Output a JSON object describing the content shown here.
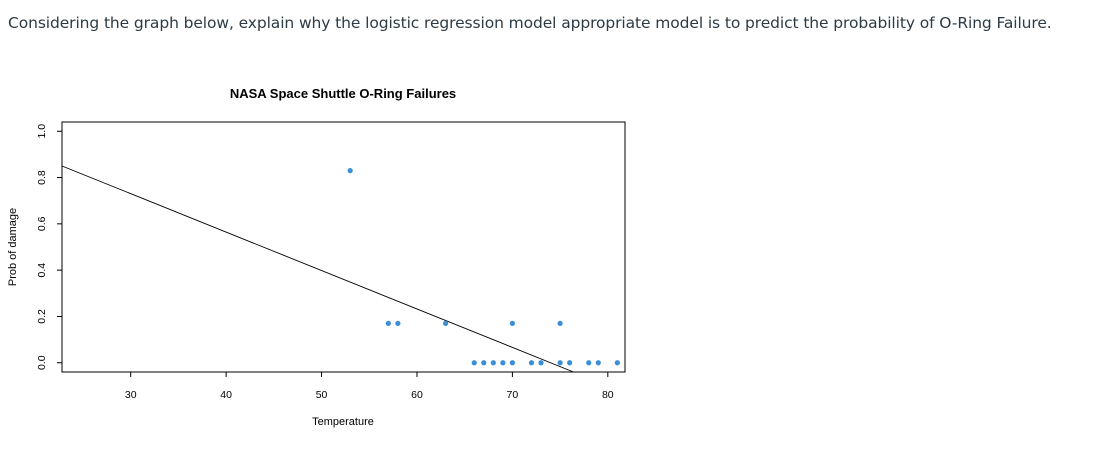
{
  "question": "Considering the graph below, explain why the logistic regression model appropriate model is to predict the probability of O-Ring Failure.",
  "colors": {
    "points": "#3a8fd6",
    "line": "#000000",
    "frame": "#000000"
  },
  "chart_data": {
    "type": "scatter",
    "title": "NASA Space Shuttle O-Ring Failures",
    "xlabel": "Temperature",
    "ylabel": "Prob of damage",
    "xlim": [
      22.8,
      81.8
    ],
    "ylim": [
      -0.04,
      1.04
    ],
    "xticks": [
      30,
      40,
      50,
      60,
      70,
      80
    ],
    "yticks": [
      0.0,
      0.2,
      0.4,
      0.6,
      0.8,
      1.0
    ],
    "ytick_labels": [
      "0.0",
      "0.2",
      "0.4",
      "0.6",
      "0.8",
      "1.0"
    ],
    "points": [
      {
        "x": 53,
        "y": 0.83
      },
      {
        "x": 57,
        "y": 0.17
      },
      {
        "x": 58,
        "y": 0.17
      },
      {
        "x": 63,
        "y": 0.17
      },
      {
        "x": 66,
        "y": 0.0
      },
      {
        "x": 67,
        "y": 0.0
      },
      {
        "x": 68,
        "y": 0.0
      },
      {
        "x": 69,
        "y": 0.0
      },
      {
        "x": 70,
        "y": 0.0
      },
      {
        "x": 70,
        "y": 0.17
      },
      {
        "x": 72,
        "y": 0.0
      },
      {
        "x": 73,
        "y": 0.0
      },
      {
        "x": 75,
        "y": 0.0
      },
      {
        "x": 75,
        "y": 0.17
      },
      {
        "x": 76,
        "y": 0.0
      },
      {
        "x": 78,
        "y": 0.0
      },
      {
        "x": 79,
        "y": 0.0
      },
      {
        "x": 81,
        "y": 0.0
      }
    ],
    "fit_line": {
      "x": [
        22.8,
        76.4
      ],
      "y": [
        0.85,
        -0.04
      ]
    }
  }
}
